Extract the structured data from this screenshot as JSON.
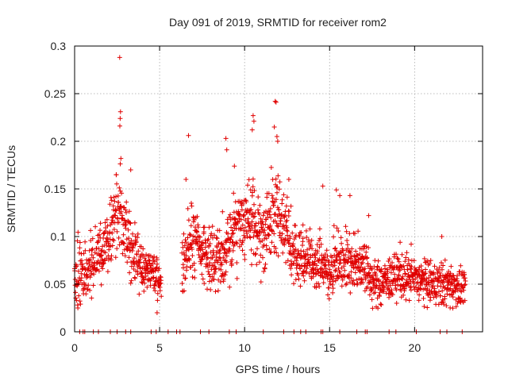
{
  "chart_data": {
    "type": "scatter",
    "title": "Day 091 of 2019, SRMTID for receiver rom2",
    "xlabel": "GPS time / hours",
    "ylabel": "SRMTID / TECUs",
    "xlim": [
      0,
      24
    ],
    "ylim": [
      0,
      0.3
    ],
    "xticks": [
      0,
      5,
      10,
      15,
      20
    ],
    "yticks": [
      0,
      0.05,
      0.1,
      0.15,
      0.2,
      0.25,
      0.3
    ],
    "xtick_labels": [
      "0",
      "5",
      "10",
      "15",
      "20"
    ],
    "ytick_labels": [
      "0",
      "0.05",
      "0.1",
      "0.15",
      "0.2",
      "0.25",
      "0.3"
    ],
    "grid": true,
    "marker": "+",
    "color": "#e00000",
    "series": [
      {
        "name": "rom2",
        "envelope": [
          [
            0.0,
            0.065,
            0.025
          ],
          [
            0.5,
            0.06,
            0.02
          ],
          [
            1.0,
            0.07,
            0.02
          ],
          [
            1.5,
            0.085,
            0.018
          ],
          [
            2.0,
            0.095,
            0.02
          ],
          [
            2.5,
            0.12,
            0.03
          ],
          [
            2.8,
            0.13,
            0.03
          ],
          [
            3.0,
            0.1,
            0.025
          ],
          [
            3.5,
            0.08,
            0.02
          ],
          [
            4.0,
            0.07,
            0.018
          ],
          [
            4.5,
            0.065,
            0.015
          ],
          [
            5.0,
            0.05,
            0.012
          ],
          [
            6.4,
            0.07,
            0.02
          ],
          [
            6.8,
            0.1,
            0.025
          ],
          [
            7.5,
            0.085,
            0.02
          ],
          [
            8.0,
            0.075,
            0.02
          ],
          [
            8.8,
            0.085,
            0.025
          ],
          [
            9.5,
            0.11,
            0.025
          ],
          [
            10.0,
            0.12,
            0.025
          ],
          [
            10.5,
            0.11,
            0.03
          ],
          [
            11.0,
            0.095,
            0.025
          ],
          [
            11.5,
            0.115,
            0.03
          ],
          [
            12.0,
            0.13,
            0.03
          ],
          [
            12.5,
            0.1,
            0.025
          ],
          [
            13.0,
            0.08,
            0.02
          ],
          [
            14.0,
            0.075,
            0.018
          ],
          [
            15.0,
            0.065,
            0.018
          ],
          [
            15.5,
            0.08,
            0.02
          ],
          [
            16.0,
            0.075,
            0.02
          ],
          [
            16.5,
            0.07,
            0.02
          ],
          [
            17.0,
            0.075,
            0.02
          ],
          [
            17.5,
            0.05,
            0.015
          ],
          [
            18.0,
            0.05,
            0.015
          ],
          [
            19.0,
            0.06,
            0.015
          ],
          [
            20.0,
            0.055,
            0.015
          ],
          [
            21.0,
            0.05,
            0.015
          ],
          [
            22.0,
            0.05,
            0.015
          ],
          [
            23.0,
            0.045,
            0.012
          ]
        ],
        "gaps": [
          [
            5.1,
            6.3
          ]
        ],
        "outliers": [
          [
            2.65,
            0.288
          ],
          [
            2.7,
            0.231
          ],
          [
            2.68,
            0.224
          ],
          [
            2.66,
            0.216
          ],
          [
            2.72,
            0.182
          ],
          [
            6.7,
            0.206
          ],
          [
            8.9,
            0.203
          ],
          [
            8.95,
            0.191
          ],
          [
            10.5,
            0.227
          ],
          [
            10.55,
            0.221
          ],
          [
            10.45,
            0.212
          ],
          [
            11.8,
            0.242
          ],
          [
            11.85,
            0.241
          ],
          [
            11.9,
            0.205
          ],
          [
            11.75,
            0.215
          ],
          [
            11.95,
            0.2
          ],
          [
            2.45,
            0.165
          ],
          [
            3.3,
            0.17
          ],
          [
            6.55,
            0.16
          ],
          [
            9.4,
            0.174
          ],
          [
            12.6,
            0.16
          ],
          [
            14.6,
            0.153
          ],
          [
            15.4,
            0.149
          ],
          [
            15.6,
            0.143
          ],
          [
            16.2,
            0.143
          ],
          [
            17.3,
            0.122
          ],
          [
            21.6,
            0.1
          ],
          [
            4.85,
            0.02
          ],
          [
            19.15,
            0.094
          ],
          [
            19.8,
            0.092
          ]
        ],
        "zero_points": [
          0.3,
          0.5,
          0.6,
          1.1,
          1.4,
          2.1,
          2.5,
          3.0,
          3.3,
          4.5,
          4.8,
          5.5,
          6.0,
          6.2,
          7.4,
          7.9,
          9.1,
          9.5,
          11.1,
          12.3,
          12.9,
          13.3,
          13.6,
          14.5,
          14.6,
          15.6,
          16.6,
          17.1,
          17.2,
          18.5,
          18.9,
          20.1,
          21.5,
          21.9,
          22.8
        ]
      }
    ]
  }
}
